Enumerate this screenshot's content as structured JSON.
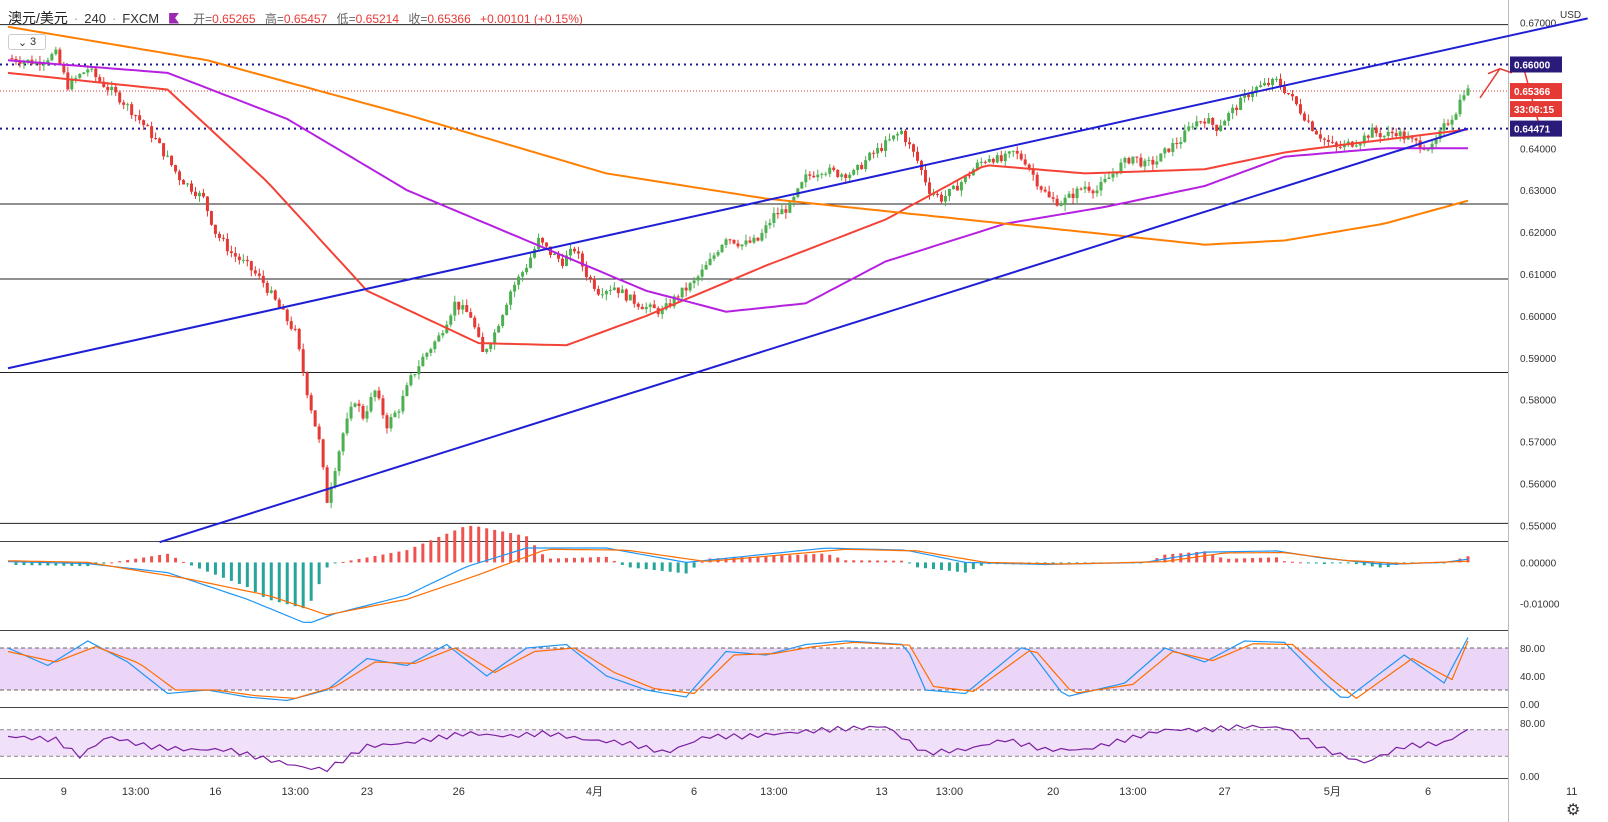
{
  "header": {
    "symbol": "澳元/美元",
    "interval": "240",
    "source": "FXCM",
    "open_label": "开=",
    "open": "0.65265",
    "high_label": "高=",
    "high": "0.65457",
    "low_label": "低=",
    "low": "0.65214",
    "close_label": "收=",
    "close": "0.65366",
    "change": "+0.00101 (+0.15%)"
  },
  "legend_toggle": {
    "count": "3",
    "icon": "chevron-down-icon"
  },
  "currency": "USD",
  "settings_icon": "gear-icon",
  "colors": {
    "up": "#4caf50",
    "down": "#e53935",
    "trendline": "#1f1fd6",
    "ma_fast": "#f44336",
    "ma_mid": "#b620e0",
    "ma_slow": "#ff7f00",
    "macd": "#2196f3",
    "signal": "#ff6d00",
    "rsi": "#7b1fa2",
    "band": "#e6ccf5"
  },
  "chart_data": [
    {
      "type": "candlestick",
      "title": "澳元/美元 · 240 · FXCM",
      "ylim": [
        0.547,
        0.673
      ],
      "y_ticks": [
        "0.67000",
        "0.66000",
        "0.64000",
        "0.63000",
        "0.62000",
        "0.61000",
        "0.60000",
        "0.59000",
        "0.58000",
        "0.57000",
        "0.56000",
        "0.55000"
      ],
      "x_ticks": [
        "9",
        "13:00",
        "16",
        "13:00",
        "23",
        "26",
        "4月",
        "6",
        "13:00",
        "13",
        "13:00",
        "20",
        "13:00",
        "27",
        "5月",
        "6",
        "11"
      ],
      "price_labels": [
        "0.66000",
        "0.65366",
        "33:06:15",
        "0.64471"
      ],
      "horizontal_levels": [
        0.6695,
        0.66,
        0.6447,
        0.6267,
        0.6088,
        0.5865,
        0.5505
      ],
      "current_price": 0.65366,
      "close_path": [
        [
          0,
          0.6615
        ],
        [
          7,
          0.6605
        ],
        [
          12,
          0.6625
        ],
        [
          15,
          0.655
        ],
        [
          20,
          0.659
        ],
        [
          23,
          0.656
        ],
        [
          28,
          0.652
        ],
        [
          32,
          0.648
        ],
        [
          37,
          0.642
        ],
        [
          43,
          0.633
        ],
        [
          49,
          0.628
        ],
        [
          52,
          0.62
        ],
        [
          56,
          0.615
        ],
        [
          60,
          0.612
        ],
        [
          64,
          0.608
        ],
        [
          68,
          0.602
        ],
        [
          72,
          0.596
        ],
        [
          75,
          0.582
        ],
        [
          78,
          0.57
        ],
        [
          80,
          0.556
        ],
        [
          82,
          0.564
        ],
        [
          84,
          0.572
        ],
        [
          87,
          0.58
        ],
        [
          89,
          0.576
        ],
        [
          92,
          0.582
        ],
        [
          95,
          0.574
        ],
        [
          98,
          0.578
        ],
        [
          101,
          0.585
        ],
        [
          104,
          0.59
        ],
        [
          108,
          0.595
        ],
        [
          112,
          0.603
        ],
        [
          116,
          0.6
        ],
        [
          119,
          0.591
        ],
        [
          122,
          0.596
        ],
        [
          126,
          0.606
        ],
        [
          130,
          0.612
        ],
        [
          133,
          0.618
        ],
        [
          136,
          0.615
        ],
        [
          139,
          0.613
        ],
        [
          142,
          0.616
        ],
        [
          145,
          0.61
        ],
        [
          148,
          0.606
        ],
        [
          152,
          0.607
        ],
        [
          156,
          0.604
        ],
        [
          160,
          0.602
        ],
        [
          164,
          0.601
        ],
        [
          168,
          0.605
        ],
        [
          172,
          0.608
        ],
        [
          176,
          0.613
        ],
        [
          180,
          0.619
        ],
        [
          184,
          0.617
        ],
        [
          188,
          0.618
        ],
        [
          192,
          0.624
        ],
        [
          196,
          0.626
        ],
        [
          200,
          0.633
        ],
        [
          204,
          0.635
        ],
        [
          208,
          0.634
        ],
        [
          212,
          0.634
        ],
        [
          216,
          0.638
        ],
        [
          220,
          0.641
        ],
        [
          224,
          0.644
        ],
        [
          228,
          0.637
        ],
        [
          231,
          0.63
        ],
        [
          234,
          0.628
        ],
        [
          237,
          0.63
        ],
        [
          240,
          0.633
        ],
        [
          243,
          0.636
        ],
        [
          246,
          0.638
        ],
        [
          249,
          0.637
        ],
        [
          252,
          0.639
        ],
        [
          255,
          0.637
        ],
        [
          258,
          0.632
        ],
        [
          261,
          0.628
        ],
        [
          264,
          0.627
        ],
        [
          267,
          0.629
        ],
        [
          270,
          0.631
        ],
        [
          273,
          0.63
        ],
        [
          276,
          0.633
        ],
        [
          279,
          0.636
        ],
        [
          282,
          0.638
        ],
        [
          285,
          0.636
        ],
        [
          288,
          0.637
        ],
        [
          291,
          0.64
        ],
        [
          294,
          0.642
        ],
        [
          297,
          0.646
        ],
        [
          300,
          0.647
        ],
        [
          303,
          0.645
        ],
        [
          306,
          0.648
        ],
        [
          309,
          0.651
        ],
        [
          312,
          0.654
        ],
        [
          315,
          0.655
        ],
        [
          318,
          0.656
        ],
        [
          321,
          0.653
        ],
        [
          324,
          0.649
        ],
        [
          327,
          0.645
        ],
        [
          330,
          0.642
        ],
        [
          333,
          0.64
        ],
        [
          336,
          0.641
        ],
        [
          339,
          0.642
        ],
        [
          342,
          0.644
        ],
        [
          345,
          0.643
        ],
        [
          348,
          0.644
        ],
        [
          351,
          0.642
        ],
        [
          354,
          0.641
        ],
        [
          357,
          0.64
        ],
        [
          360,
          0.645
        ],
        [
          363,
          0.649
        ],
        [
          365,
          0.6537
        ]
      ],
      "moving_averages": [
        {
          "color": "#f44336",
          "points": [
            [
              0,
              0.658
            ],
            [
              40,
              0.654
            ],
            [
              65,
              0.632
            ],
            [
              90,
              0.606
            ],
            [
              118,
              0.5935
            ],
            [
              140,
              0.593
            ],
            [
              160,
              0.6
            ],
            [
              190,
              0.612
            ],
            [
              220,
              0.623
            ],
            [
              245,
              0.636
            ],
            [
              270,
              0.634
            ],
            [
              300,
              0.635
            ],
            [
              320,
              0.639
            ],
            [
              336,
              0.641
            ],
            [
              366,
              0.6445
            ]
          ]
        },
        {
          "color": "#b620e0",
          "points": [
            [
              0,
              0.661
            ],
            [
              40,
              0.658
            ],
            [
              70,
              0.647
            ],
            [
              100,
              0.63
            ],
            [
              130,
              0.618
            ],
            [
              160,
              0.606
            ],
            [
              180,
              0.601
            ],
            [
              200,
              0.603
            ],
            [
              220,
              0.613
            ],
            [
              250,
              0.622
            ],
            [
              275,
              0.626
            ],
            [
              300,
              0.631
            ],
            [
              320,
              0.638
            ],
            [
              345,
              0.64
            ],
            [
              366,
              0.64
            ]
          ]
        },
        {
          "color": "#ff7f00",
          "points": [
            [
              0,
              0.669
            ],
            [
              50,
              0.661
            ],
            [
              100,
              0.648
            ],
            [
              150,
              0.634
            ],
            [
              190,
              0.628
            ],
            [
              230,
              0.624
            ],
            [
              270,
              0.62
            ],
            [
              300,
              0.617
            ],
            [
              320,
              0.618
            ],
            [
              345,
              0.622
            ],
            [
              366,
              0.6275
            ]
          ]
        }
      ],
      "trendlines": [
        {
          "points": [
            [
              0,
              0.5875
            ],
            [
              396,
              0.671
            ]
          ]
        },
        {
          "points": [
            [
              38,
              0.546
            ],
            [
              366,
              0.6447
            ]
          ]
        }
      ]
    },
    {
      "type": "macd",
      "ylim": [
        -0.016,
        0.004
      ],
      "y_ticks": [
        "0.00000",
        "-0.01000"
      ],
      "macd_path": [
        [
          0,
          0.0002
        ],
        [
          20,
          -0.0003
        ],
        [
          40,
          -0.0025
        ],
        [
          60,
          -0.009
        ],
        [
          75,
          -0.015
        ],
        [
          82,
          -0.0125
        ],
        [
          100,
          -0.008
        ],
        [
          115,
          -0.001
        ],
        [
          130,
          0.0035
        ],
        [
          150,
          0.0035
        ],
        [
          170,
          0.0
        ],
        [
          185,
          0.0015
        ],
        [
          205,
          0.0035
        ],
        [
          225,
          0.003
        ],
        [
          240,
          0.0
        ],
        [
          260,
          -0.0005
        ],
        [
          285,
          0.0
        ],
        [
          300,
          0.0025
        ],
        [
          318,
          0.0028
        ],
        [
          330,
          0.001
        ],
        [
          345,
          -0.0005
        ],
        [
          360,
          0.0
        ],
        [
          366,
          0.0008
        ]
      ],
      "signal_path": [
        [
          0,
          0.0004
        ],
        [
          20,
          0.0
        ],
        [
          45,
          -0.004
        ],
        [
          65,
          -0.008
        ],
        [
          80,
          -0.0128
        ],
        [
          100,
          -0.009
        ],
        [
          118,
          -0.003
        ],
        [
          135,
          0.0032
        ],
        [
          155,
          0.003
        ],
        [
          175,
          0.0002
        ],
        [
          190,
          0.0015
        ],
        [
          210,
          0.0032
        ],
        [
          228,
          0.0028
        ],
        [
          245,
          0.0
        ],
        [
          265,
          -0.0004
        ],
        [
          290,
          0.0002
        ],
        [
          305,
          0.0023
        ],
        [
          320,
          0.0024
        ],
        [
          335,
          0.0005
        ],
        [
          350,
          -0.0003
        ],
        [
          366,
          0.0003
        ]
      ]
    },
    {
      "type": "stochastic",
      "ylim": [
        0,
        100
      ],
      "y_ticks": [
        "80.00",
        "40.00",
        "0.00"
      ],
      "bands": [
        20,
        80
      ],
      "k_path": [
        [
          0,
          80
        ],
        [
          10,
          55
        ],
        [
          20,
          90
        ],
        [
          30,
          60
        ],
        [
          40,
          15
        ],
        [
          50,
          20
        ],
        [
          60,
          10
        ],
        [
          70,
          5
        ],
        [
          80,
          20
        ],
        [
          90,
          65
        ],
        [
          100,
          55
        ],
        [
          110,
          85
        ],
        [
          120,
          40
        ],
        [
          130,
          80
        ],
        [
          140,
          85
        ],
        [
          150,
          40
        ],
        [
          160,
          20
        ],
        [
          170,
          10
        ],
        [
          180,
          75
        ],
        [
          190,
          70
        ],
        [
          200,
          85
        ],
        [
          210,
          90
        ],
        [
          225,
          85
        ],
        [
          230,
          20
        ],
        [
          240,
          15
        ],
        [
          255,
          85
        ],
        [
          265,
          10
        ],
        [
          280,
          30
        ],
        [
          290,
          80
        ],
        [
          300,
          60
        ],
        [
          310,
          90
        ],
        [
          320,
          88
        ],
        [
          330,
          30
        ],
        [
          335,
          5
        ],
        [
          350,
          70
        ],
        [
          360,
          30
        ],
        [
          366,
          95
        ]
      ],
      "d_path": [
        [
          0,
          75
        ],
        [
          12,
          60
        ],
        [
          22,
          82
        ],
        [
          33,
          58
        ],
        [
          42,
          20
        ],
        [
          52,
          20
        ],
        [
          62,
          12
        ],
        [
          72,
          8
        ],
        [
          82,
          25
        ],
        [
          92,
          60
        ],
        [
          102,
          58
        ],
        [
          112,
          80
        ],
        [
          122,
          45
        ],
        [
          132,
          75
        ],
        [
          142,
          80
        ],
        [
          152,
          45
        ],
        [
          162,
          22
        ],
        [
          172,
          15
        ],
        [
          182,
          70
        ],
        [
          192,
          72
        ],
        [
          202,
          82
        ],
        [
          212,
          88
        ],
        [
          226,
          84
        ],
        [
          232,
          25
        ],
        [
          242,
          18
        ],
        [
          257,
          80
        ],
        [
          267,
          15
        ],
        [
          282,
          28
        ],
        [
          292,
          75
        ],
        [
          302,
          62
        ],
        [
          312,
          86
        ],
        [
          322,
          85
        ],
        [
          332,
          35
        ],
        [
          338,
          8
        ],
        [
          352,
          65
        ],
        [
          362,
          35
        ],
        [
          366,
          90
        ]
      ]
    },
    {
      "type": "rsi",
      "ylim": [
        0,
        100
      ],
      "y_ticks": [
        "80.00",
        "0.00"
      ],
      "bands": [
        30,
        70
      ],
      "rsi_path": [
        [
          0,
          60
        ],
        [
          12,
          55
        ],
        [
          18,
          30
        ],
        [
          25,
          60
        ],
        [
          35,
          45
        ],
        [
          45,
          40
        ],
        [
          55,
          40
        ],
        [
          65,
          25
        ],
        [
          75,
          12
        ],
        [
          80,
          10
        ],
        [
          90,
          45
        ],
        [
          100,
          50
        ],
        [
          115,
          65
        ],
        [
          125,
          60
        ],
        [
          135,
          65
        ],
        [
          145,
          55
        ],
        [
          155,
          50
        ],
        [
          165,
          35
        ],
        [
          175,
          60
        ],
        [
          185,
          60
        ],
        [
          195,
          65
        ],
        [
          205,
          70
        ],
        [
          220,
          75
        ],
        [
          230,
          35
        ],
        [
          240,
          40
        ],
        [
          250,
          55
        ],
        [
          260,
          40
        ],
        [
          270,
          40
        ],
        [
          280,
          55
        ],
        [
          290,
          70
        ],
        [
          300,
          70
        ],
        [
          310,
          75
        ],
        [
          320,
          73
        ],
        [
          330,
          40
        ],
        [
          340,
          20
        ],
        [
          350,
          45
        ],
        [
          360,
          50
        ],
        [
          366,
          70
        ]
      ]
    }
  ]
}
